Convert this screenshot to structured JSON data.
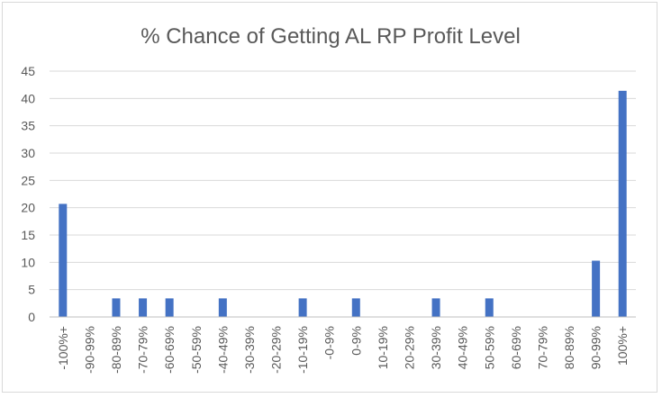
{
  "chart_data": {
    "type": "bar",
    "title": "% Chance of Getting AL RP Profit Level",
    "xlabel": "",
    "ylabel": "",
    "categories": [
      "-100%+",
      "-90-99%",
      "-80-89%",
      "-70-79%",
      "-60-69%",
      "-50-59%",
      "-40-49%",
      "-30-39%",
      "-20-29%",
      "-10-19%",
      "-0-9%",
      "0-9%",
      "10-19%",
      "20-29%",
      "30-39%",
      "40-49%",
      "50-59%",
      "60-69%",
      "70-79%",
      "80-89%",
      "90-99%",
      "100%+"
    ],
    "values": [
      20.7,
      0,
      3.4,
      3.4,
      3.4,
      0,
      3.4,
      0,
      0,
      3.4,
      0,
      3.4,
      0,
      0,
      3.4,
      0,
      3.4,
      0,
      0,
      0,
      10.3,
      41.4
    ],
    "ylim": [
      0,
      45
    ],
    "yticks": [
      0,
      5,
      10,
      15,
      20,
      25,
      30,
      35,
      40,
      45
    ],
    "grid": true,
    "legend": "none",
    "colors": {
      "bar": "#4472c4",
      "grid": "#d9d9d9",
      "text": "#595959"
    }
  }
}
